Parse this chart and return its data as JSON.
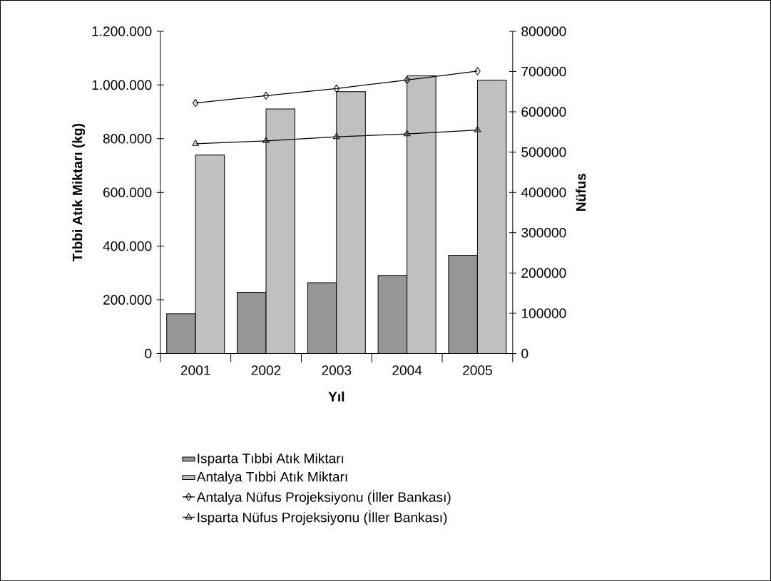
{
  "chart_data": {
    "type": "bar",
    "xlabel": "Yıl",
    "ylabel": "Tıbbi Atık Miktarı (kg)",
    "y2label": "Nüfus",
    "categories": [
      "2001",
      "2002",
      "2003",
      "2004",
      "2005"
    ],
    "series": [
      {
        "name": "Isparta Tıbbi Atık Miktarı",
        "color": "#969696",
        "values": [
          148000,
          228000,
          264000,
          291000,
          366000
        ]
      },
      {
        "name": "Antalya Tıbbi Atık Miktarı",
        "color": "#c0c0c0",
        "values": [
          739000,
          911000,
          975000,
          1034000,
          1018000
        ]
      },
      {
        "name": "Antalya Nüfus Projeksiyonu (İller Bankası)",
        "type": "line",
        "axis": "y2",
        "marker": "diamond",
        "color": "#000000",
        "values": [
          622000,
          640000,
          658000,
          679000,
          701000
        ]
      },
      {
        "name": "Isparta Nüfus Projeksiyonu (İller Bankası)",
        "type": "line",
        "axis": "y2",
        "marker": "triangle",
        "color": "#000000",
        "values": [
          521000,
          528000,
          538000,
          545000,
          555000
        ]
      }
    ],
    "ylim": [
      0,
      1200000
    ],
    "yticks": [
      {
        "value": 0,
        "label": "0"
      },
      {
        "value": 200000,
        "label": "200.000"
      },
      {
        "value": 400000,
        "label": "400.000"
      },
      {
        "value": 600000,
        "label": "600.000"
      },
      {
        "value": 800000,
        "label": "800.000"
      },
      {
        "value": 1000000,
        "label": "1.000.000"
      },
      {
        "value": 1200000,
        "label": "1.200.000"
      }
    ],
    "y2lim": [
      0,
      800000
    ],
    "y2ticks": [
      0,
      100000,
      200000,
      300000,
      400000,
      500000,
      600000,
      700000,
      800000
    ],
    "legend": "bottom"
  }
}
